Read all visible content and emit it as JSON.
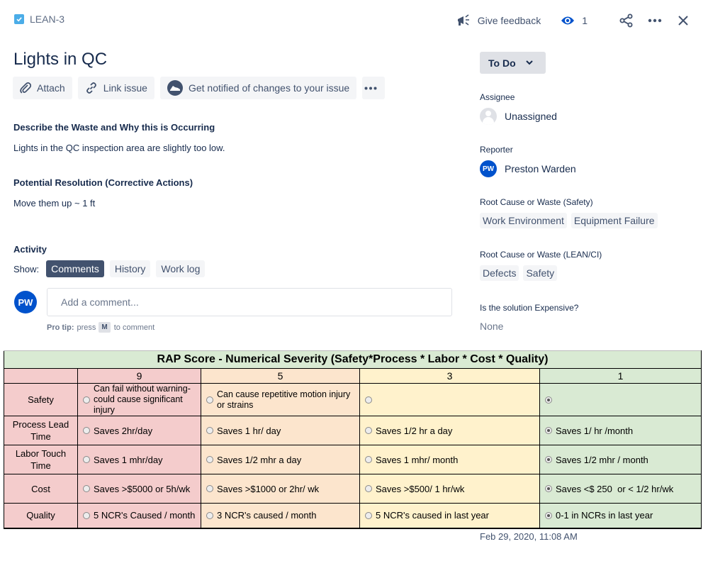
{
  "header": {
    "issue_key": "LEAN-3",
    "feedback_label": "Give feedback",
    "watch_count": "1",
    "icons": {
      "issue_type": "checkbox-icon",
      "feedback": "megaphone-icon",
      "watch": "eye-icon",
      "share": "share-icon",
      "more": "more-icon",
      "close": "close-icon"
    }
  },
  "issue": {
    "title": "Lights in QC",
    "actions": {
      "attach": "Attach",
      "link": "Link issue",
      "notify": "Get notified of changes to your issue"
    },
    "fields": [
      {
        "heading": "Describe the Waste and Why this is Occurring",
        "value": "Lights in the QC inspection area are slightly too low."
      },
      {
        "heading": "Potential Resolution (Corrective Actions)",
        "value": "Move them up ~ 1 ft"
      }
    ]
  },
  "activity": {
    "heading": "Activity",
    "show_label": "Show:",
    "tabs": [
      "Comments",
      "History",
      "Work log"
    ],
    "active_tab": "Comments",
    "user_initials": "PW",
    "comment_placeholder": "Add a comment...",
    "protip_label": "Pro tip:",
    "protip_press": "press",
    "protip_key": "M",
    "protip_suffix": "to comment"
  },
  "sidebar": {
    "status": "To Do",
    "assignee_label": "Assignee",
    "assignee_value": "Unassigned",
    "reporter_label": "Reporter",
    "reporter_initials": "PW",
    "reporter_name": "Preston Warden",
    "root_safety_label": "Root Cause or Waste (Safety)",
    "root_safety_tags": [
      "Work Environment",
      "Equipment Failure"
    ],
    "root_lean_label": "Root Cause or Waste (LEAN/CI)",
    "root_lean_tags": [
      "Defects",
      "Safety"
    ],
    "expensive_label": "Is the solution Expensive?",
    "expensive_value": "None",
    "timestamp": "Feb 29, 2020, 11:08 AM"
  },
  "rap": {
    "title": "RAP Score - Numerical Severity (Safety*Process * Labor * Cost * Quality)",
    "scores": [
      "9",
      "5",
      "3",
      "1"
    ],
    "rows": [
      {
        "label_l1": "Safety",
        "label_l2": "",
        "options": [
          "Can fail without warning- could cause significant injury",
          "Can cause repetitive motion injury or strains",
          "",
          ""
        ],
        "selected": 3
      },
      {
        "label_l1": "Process Lead",
        "label_l2": "Time",
        "options": [
          "Saves 2hr/day",
          "Saves 1 hr/ day",
          "Saves 1/2 hr a day",
          "Saves 1/ hr /month"
        ],
        "selected": 3
      },
      {
        "label_l1": "Labor Touch",
        "label_l2": "Time",
        "options": [
          "Saves 1 mhr/day",
          "Saves 1/2 mhr a day",
          "Saves 1 mhr/ month",
          "Saves 1/2 mhr / month"
        ],
        "selected": 3
      },
      {
        "label_l1": "Cost",
        "label_l2": "",
        "options": [
          "Saves >$5000 or 5h/wk",
          "Saves >$1000 or 2hr/ wk",
          "Saves >$500/ 1 hr/wk",
          "Saves <$ 250  or < 1/2 hr/wk"
        ],
        "selected": 3
      },
      {
        "label_l1": "Quality",
        "label_l2": "",
        "options": [
          "5 NCR's Caused / month",
          "3 NCR's caused / month",
          "5 NCR's caused in last year",
          "0-1 in NCRs in last year"
        ],
        "selected": 3
      }
    ]
  }
}
